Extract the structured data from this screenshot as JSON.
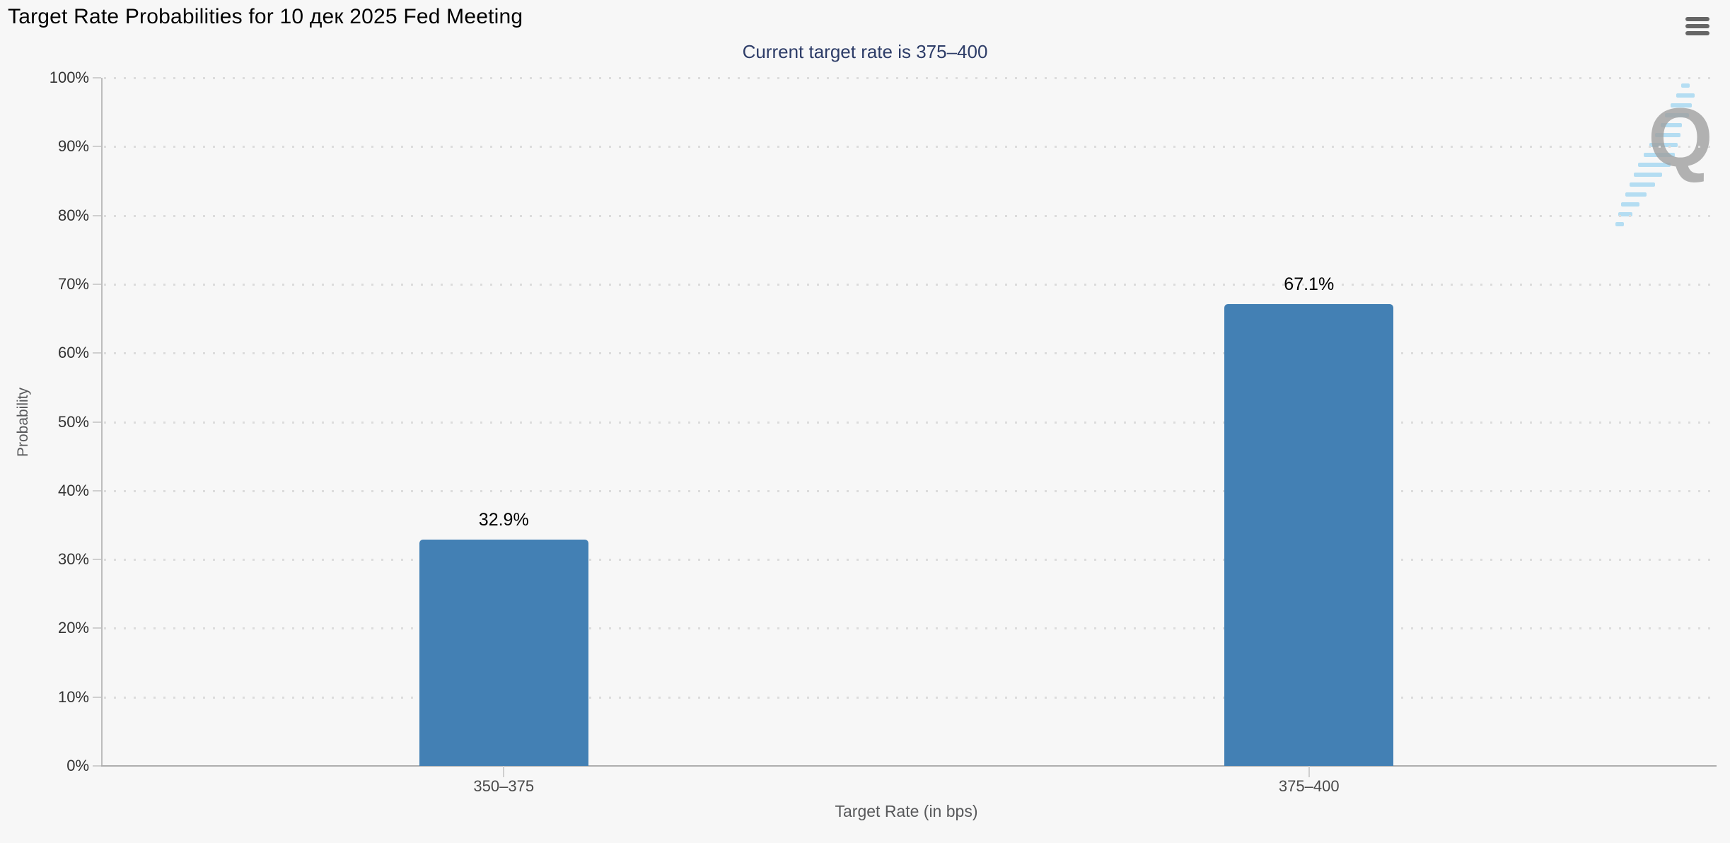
{
  "header": {
    "menu_icon": "hamburger-icon"
  },
  "chart_data": {
    "type": "bar",
    "title": "Target Rate Probabilities for 10 дек 2025 Fed Meeting",
    "subtitle": "Current target rate is 375–400",
    "categories": [
      "350–375",
      "375–400"
    ],
    "values": [
      32.9,
      67.1
    ],
    "value_labels": [
      "32.9%",
      "67.1%"
    ],
    "xlabel": "Target Rate (in bps)",
    "ylabel": "Probability",
    "ylim": [
      0,
      100
    ],
    "ytick_step": 10,
    "ytick_labels": [
      "0%",
      "10%",
      "20%",
      "30%",
      "40%",
      "50%",
      "60%",
      "70%",
      "80%",
      "90%",
      "100%"
    ],
    "grid": "dotted-horizontal",
    "legend": "none",
    "watermark_letter": "Q"
  },
  "colors": {
    "background": "#f7f7f7",
    "bar": "#4380b4",
    "subtitle": "#2e3d68",
    "axis_line": "#b5b5b5",
    "grid_dots": "#dcdcdc",
    "watermark_gray": "#a0a0a0",
    "watermark_blue": "#a9d9f2",
    "menu_icon": "#666666"
  }
}
